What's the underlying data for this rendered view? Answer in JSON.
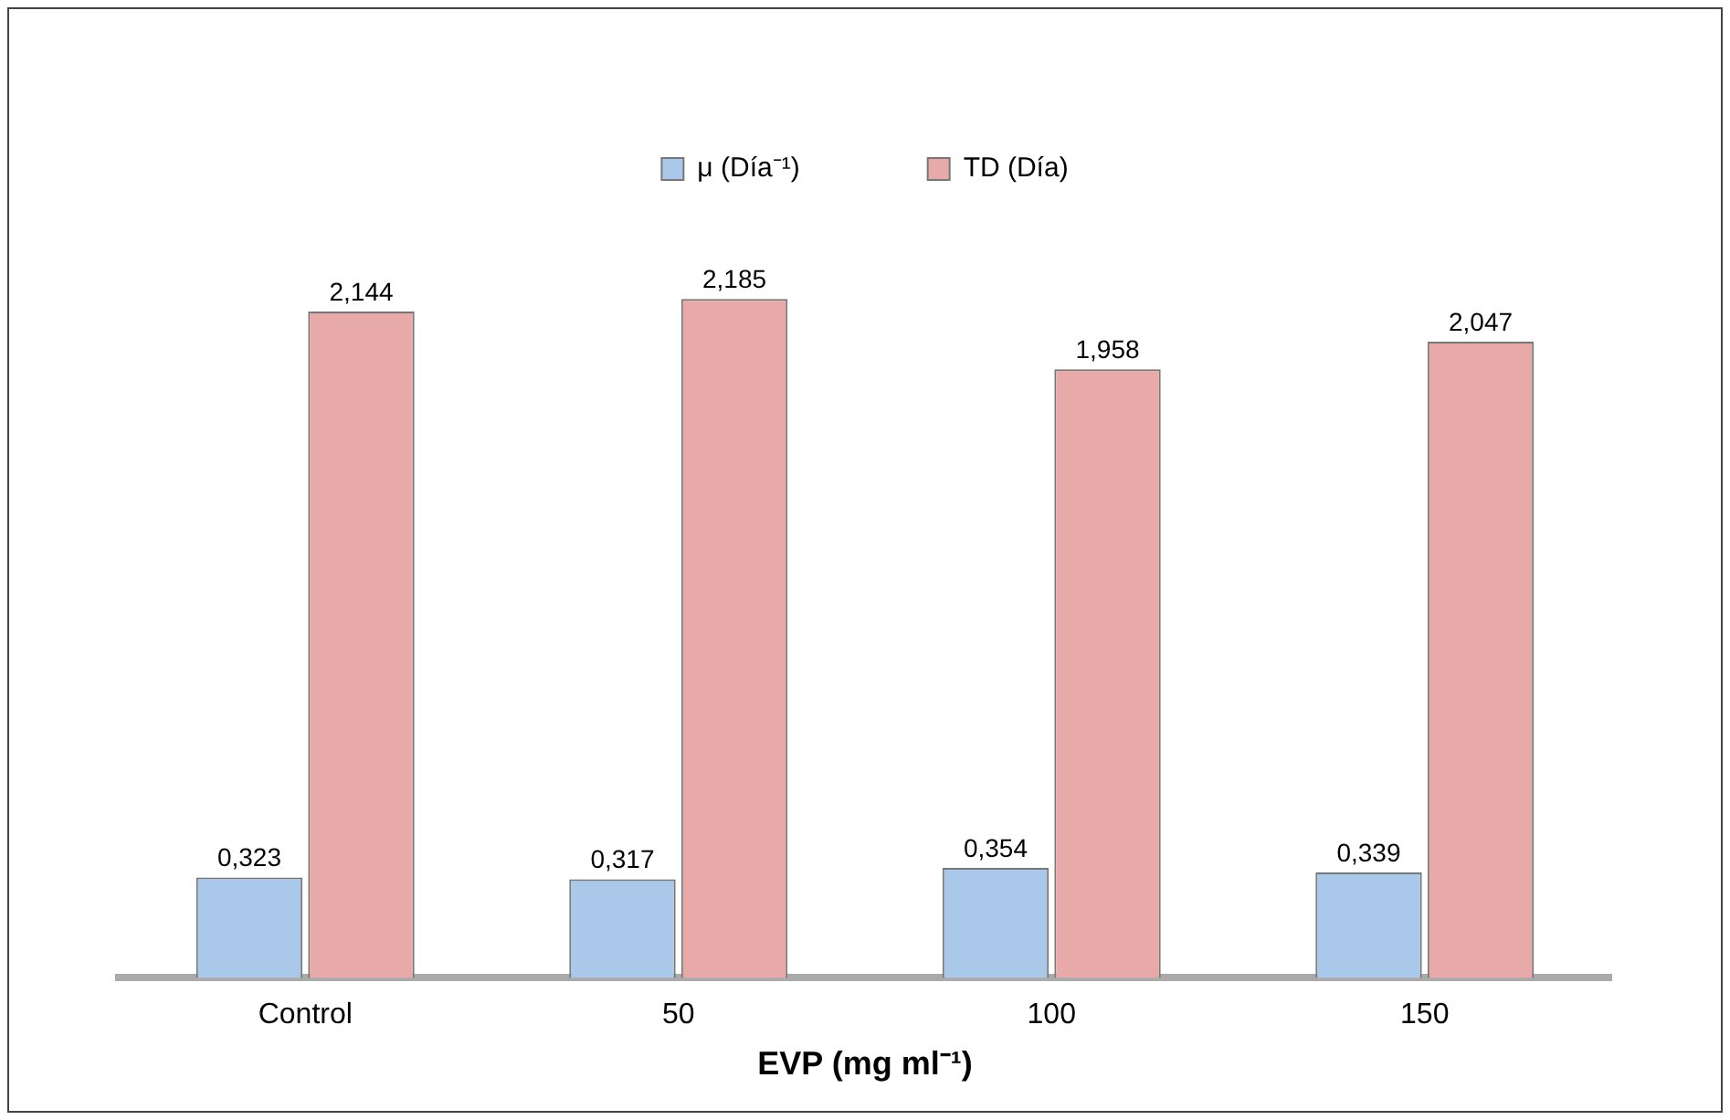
{
  "chart_data": {
    "type": "bar",
    "xlabel": "EVP (mg ml⁻¹)",
    "categories": [
      "Control",
      "50",
      "100",
      "150"
    ],
    "series": [
      {
        "name": "μ (Día⁻¹)",
        "color": "#a9c8ea",
        "values": [
          0.323,
          0.317,
          0.354,
          0.339
        ],
        "value_labels": [
          "0,323",
          "0,317",
          "0,354",
          "0,339"
        ]
      },
      {
        "name": "TD (Día)",
        "color": "#e8a9a9",
        "values": [
          2.144,
          2.185,
          1.958,
          2.047
        ],
        "value_labels": [
          "2,144",
          "2,185",
          "1,958",
          "2,047"
        ]
      }
    ],
    "legend": "top"
  }
}
